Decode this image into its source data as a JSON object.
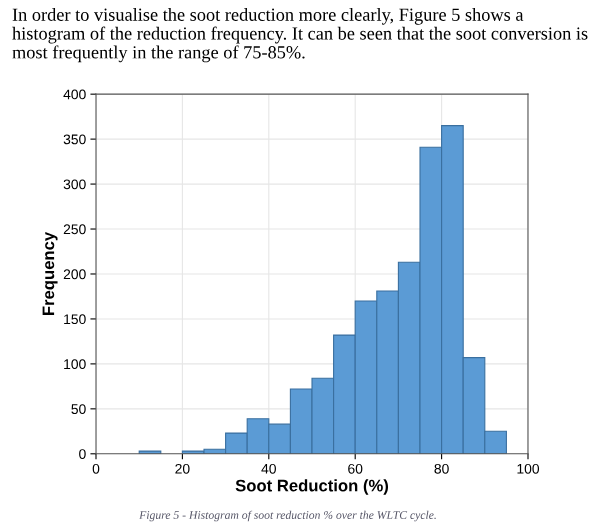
{
  "chart_data": {
    "type": "histogram",
    "xlabel": "Soot Reduction (%)",
    "ylabel": "Frequency",
    "bins": [
      10,
      15,
      20,
      25,
      30,
      35,
      40,
      45,
      50,
      55,
      60,
      65,
      70,
      75,
      80,
      85,
      90,
      95
    ],
    "values": [
      3,
      0,
      3,
      5,
      23,
      39,
      33,
      72,
      84,
      132,
      170,
      181,
      213,
      341,
      365,
      107,
      25
    ],
    "color": "#5b9bd5",
    "xlim": [
      0,
      100
    ],
    "xticks": [
      0,
      20,
      40,
      60,
      80,
      100
    ],
    "ylim": [
      0,
      400
    ],
    "yticks": [
      0,
      50,
      100,
      150,
      200,
      250,
      300,
      350,
      400
    ],
    "grid": true,
    "annotations": [
      "In order to visualise the soot reduction more clearly, Figure 5 shows a histogram of the reduction frequency. It can be seen that the soot conversion is most frequently in the range of 75-85%.",
      "Figure 5 - Histogram of soot reduction % over the WLTC cycle."
    ]
  }
}
